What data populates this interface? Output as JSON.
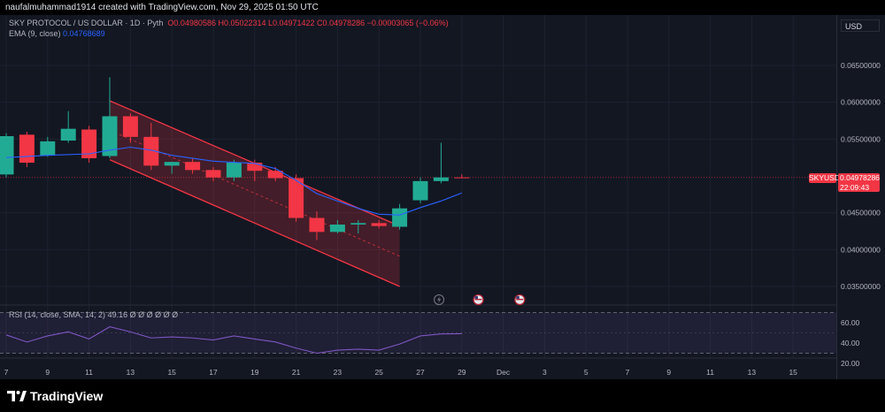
{
  "header": {
    "attribution": "naufalmuhammad1914 created with TradingView.com, Nov 29, 2025 01:50 UTC"
  },
  "legend": {
    "symbol": "SKY PROTOCOL / US DOLLAR · 1D · Pyth",
    "ohlc": "O0.04980586 H0.05022314 L0.04971422 C0.04978286 −0.00003065 (−0.06%)",
    "ema_label": "EMA (9, close)",
    "ema_value": "0.04768689",
    "rsi_label": "RSI (14, close, SMA, 14, 2)",
    "rsi_value": "49.16 Ø Ø Ø Ø Ø Ø"
  },
  "axis": {
    "currency_button": "USD"
  },
  "price_tag": {
    "symbol": "SKYUSD",
    "price": "0.04978286",
    "countdown": "22:09:43"
  },
  "brand": {
    "name": "TradingView"
  },
  "colors": {
    "up": "#22ab94",
    "down": "#f23645",
    "ema": "#2962ff",
    "channel": "#f23645",
    "rsi": "#7e57c2",
    "bg": "#131722"
  },
  "chart_data": {
    "type": "candlestick",
    "title": "SKY PROTOCOL / US DOLLAR · 1D · Pyth",
    "price_ticks": [
      "0.06500000",
      "0.06000000",
      "0.05500000",
      "0.04500000",
      "0.04000000",
      "0.03500000"
    ],
    "price_tick_values": [
      0.065,
      0.06,
      0.055,
      0.045,
      0.04,
      0.035
    ],
    "x_ticks": [
      "7",
      "9",
      "11",
      "13",
      "15",
      "17",
      "19",
      "21",
      "23",
      "25",
      "27",
      "29",
      "Dec",
      "3",
      "5",
      "7",
      "9",
      "11",
      "13",
      "15"
    ],
    "x_tick_days": [
      7,
      9,
      11,
      13,
      15,
      17,
      19,
      21,
      23,
      25,
      27,
      29,
      31,
      33,
      35,
      37,
      39,
      41,
      43,
      45
    ],
    "candles": [
      {
        "d": 7,
        "o": 0.0502,
        "h": 0.0558,
        "l": 0.0498,
        "c": 0.0554
      },
      {
        "d": 8,
        "o": 0.0556,
        "h": 0.056,
        "l": 0.0512,
        "c": 0.0518
      },
      {
        "d": 9,
        "o": 0.0528,
        "h": 0.0553,
        "l": 0.0526,
        "c": 0.0547
      },
      {
        "d": 10,
        "o": 0.0548,
        "h": 0.0588,
        "l": 0.0545,
        "c": 0.0564
      },
      {
        "d": 11,
        "o": 0.0563,
        "h": 0.0568,
        "l": 0.0518,
        "c": 0.0524
      },
      {
        "d": 12,
        "o": 0.0527,
        "h": 0.0634,
        "l": 0.0524,
        "c": 0.0581
      },
      {
        "d": 13,
        "o": 0.0581,
        "h": 0.0585,
        "l": 0.0545,
        "c": 0.0553
      },
      {
        "d": 14,
        "o": 0.0553,
        "h": 0.0572,
        "l": 0.0508,
        "c": 0.0514
      },
      {
        "d": 15,
        "o": 0.0514,
        "h": 0.0519,
        "l": 0.0503,
        "c": 0.0519
      },
      {
        "d": 16,
        "o": 0.0519,
        "h": 0.0524,
        "l": 0.0503,
        "c": 0.0508
      },
      {
        "d": 17,
        "o": 0.0508,
        "h": 0.0512,
        "l": 0.0493,
        "c": 0.0498
      },
      {
        "d": 18,
        "o": 0.0498,
        "h": 0.0522,
        "l": 0.0493,
        "c": 0.0518
      },
      {
        "d": 19,
        "o": 0.0518,
        "h": 0.0522,
        "l": 0.0493,
        "c": 0.0507
      },
      {
        "d": 20,
        "o": 0.0507,
        "h": 0.0512,
        "l": 0.0493,
        "c": 0.0497
      },
      {
        "d": 21,
        "o": 0.0497,
        "h": 0.0502,
        "l": 0.0438,
        "c": 0.0443
      },
      {
        "d": 22,
        "o": 0.0443,
        "h": 0.0452,
        "l": 0.0413,
        "c": 0.0424
      },
      {
        "d": 23,
        "o": 0.0424,
        "h": 0.044,
        "l": 0.0422,
        "c": 0.0434
      },
      {
        "d": 24,
        "o": 0.0434,
        "h": 0.044,
        "l": 0.0422,
        "c": 0.0436
      },
      {
        "d": 25,
        "o": 0.0436,
        "h": 0.044,
        "l": 0.0429,
        "c": 0.0432
      },
      {
        "d": 26,
        "o": 0.0431,
        "h": 0.0462,
        "l": 0.0427,
        "c": 0.0456
      },
      {
        "d": 27,
        "o": 0.0467,
        "h": 0.0498,
        "l": 0.0463,
        "c": 0.0493
      },
      {
        "d": 28,
        "o": 0.0493,
        "h": 0.0545,
        "l": 0.049,
        "c": 0.0498
      },
      {
        "d": 29,
        "o": 0.04980586,
        "h": 0.05022314,
        "l": 0.04971422,
        "c": 0.04978286
      }
    ],
    "ema": [
      [
        7,
        0.0525
      ],
      [
        9,
        0.0528
      ],
      [
        11,
        0.053
      ],
      [
        12,
        0.0535
      ],
      [
        13,
        0.0539
      ],
      [
        14,
        0.0535
      ],
      [
        15,
        0.0528
      ],
      [
        17,
        0.052
      ],
      [
        19,
        0.0517
      ],
      [
        20,
        0.051
      ],
      [
        21,
        0.0494
      ],
      [
        22,
        0.0476
      ],
      [
        23,
        0.0466
      ],
      [
        24,
        0.0456
      ],
      [
        25,
        0.0448
      ],
      [
        26,
        0.0447
      ],
      [
        27,
        0.0457
      ],
      [
        28,
        0.0466
      ],
      [
        29,
        0.04768689
      ]
    ],
    "channel": {
      "upper": [
        [
          12,
          0.0602
        ],
        [
          26,
          0.0432
        ]
      ],
      "lower": [
        [
          12,
          0.0522
        ],
        [
          26,
          0.035
        ]
      ],
      "mid": [
        [
          12,
          0.0562
        ],
        [
          26,
          0.0391
        ]
      ]
    },
    "rsi": {
      "label": "RSI (14, close, SMA, 14, 2)",
      "ticks": [
        "60.00",
        "40.00",
        "20.00"
      ],
      "tick_values": [
        60,
        40,
        20
      ],
      "band": [
        30,
        70
      ],
      "values": [
        [
          7,
          48
        ],
        [
          8,
          41
        ],
        [
          9,
          47
        ],
        [
          10,
          51
        ],
        [
          11,
          44
        ],
        [
          12,
          56
        ],
        [
          13,
          51
        ],
        [
          14,
          45
        ],
        [
          15,
          46
        ],
        [
          16,
          45
        ],
        [
          17,
          43
        ],
        [
          18,
          47
        ],
        [
          19,
          44
        ],
        [
          20,
          41
        ],
        [
          21,
          35
        ],
        [
          22,
          30
        ],
        [
          23,
          33
        ],
        [
          24,
          34
        ],
        [
          25,
          33
        ],
        [
          26,
          39
        ],
        [
          27,
          47
        ],
        [
          28,
          49
        ],
        [
          29,
          49.16
        ]
      ]
    }
  }
}
